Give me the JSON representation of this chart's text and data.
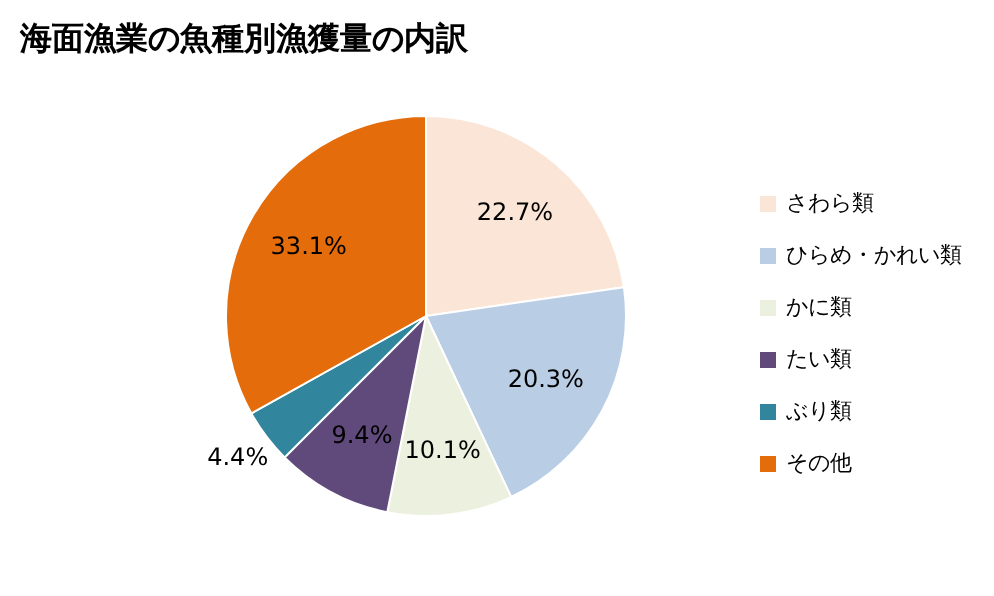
{
  "chart_data": {
    "type": "pie",
    "title": "海面漁業の魚種別漁獲量の内訳",
    "categories": [
      "さわら類",
      "ひらめ・かれい類",
      "かに類",
      "たい類",
      "ぶり類",
      "その他"
    ],
    "values": [
      22.7,
      20.3,
      10.1,
      9.4,
      4.4,
      33.1
    ],
    "colors": [
      "#fbe5d6",
      "#b9cde5",
      "#ebf1de",
      "#604a7b",
      "#31859c",
      "#e46c0a"
    ],
    "value_labels": [
      "22.7%",
      "20.3%",
      "10.1%",
      "9.4%",
      "4.4%",
      "33.1%"
    ],
    "legend": "right"
  }
}
